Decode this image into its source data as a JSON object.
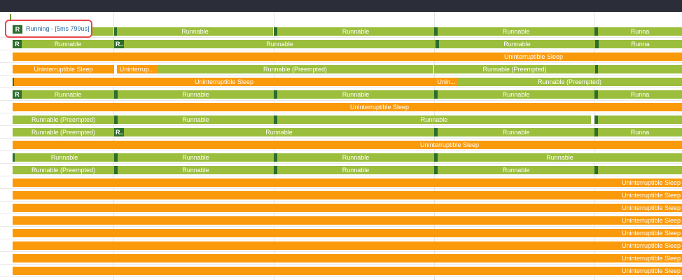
{
  "header": {
    "title": ""
  },
  "highlight": {
    "badge": "R",
    "text": "Running - [5ms 799us]"
  },
  "colors": {
    "runnable": "#9bbe3c",
    "sleep": "#fa9a0b",
    "running": "#2d6e2b",
    "highlight_border": "#e8464a",
    "topbar": "#2b2e38"
  },
  "tracks": [
    {
      "slices": [
        {
          "state": "runnable",
          "label": "Runnable"
        },
        {
          "state": "running",
          "label": ""
        },
        {
          "state": "runnable",
          "label": "Runnable"
        },
        {
          "state": "running",
          "label": ""
        },
        {
          "state": "runnable",
          "label": "Runnable"
        },
        {
          "state": "running",
          "label": ""
        },
        {
          "state": "runnable",
          "label": "Runnable"
        },
        {
          "state": "running",
          "label": ""
        },
        {
          "state": "runnable",
          "label": "Runna"
        }
      ]
    },
    {
      "slices": [
        {
          "state": "running",
          "label": "R"
        },
        {
          "state": "runnable",
          "label": "Runnable"
        },
        {
          "state": "running",
          "label": "R..."
        },
        {
          "state": "runnable",
          "label": "Runnable"
        },
        {
          "state": "running",
          "label": ""
        },
        {
          "state": "runnable",
          "label": "Runnable"
        },
        {
          "state": "running",
          "label": ""
        },
        {
          "state": "runnable",
          "label": "Runna"
        }
      ]
    },
    {
      "slices": [
        {
          "state": "sleep",
          "label": "Uninterruptible Sleep"
        }
      ]
    },
    {
      "slices": [
        {
          "state": "sleep",
          "label": "Uninterruptible Sleep"
        },
        {
          "state": "sleep",
          "label": "Uninterrup..."
        },
        {
          "state": "runnable",
          "label": "Runnable (Preempted)"
        },
        {
          "state": "runnable",
          "label": "Runnable (Preempted)"
        },
        {
          "state": "running",
          "label": ""
        },
        {
          "state": "runnable",
          "label": ""
        }
      ]
    },
    {
      "slices": [
        {
          "state": "running",
          "label": ""
        },
        {
          "state": "sleep",
          "label": "Uninterruptible Sleep"
        },
        {
          "state": "sleep",
          "label": "Unin..."
        },
        {
          "state": "runnable",
          "label": "Runnable (Preempted)"
        }
      ]
    },
    {
      "slices": [
        {
          "state": "running",
          "label": "R"
        },
        {
          "state": "runnable",
          "label": "Runnable"
        },
        {
          "state": "running",
          "label": ""
        },
        {
          "state": "runnable",
          "label": "Runnable"
        },
        {
          "state": "running",
          "label": ""
        },
        {
          "state": "runnable",
          "label": "Runnable"
        },
        {
          "state": "running",
          "label": ""
        },
        {
          "state": "runnable",
          "label": "Runnable"
        },
        {
          "state": "running",
          "label": ""
        },
        {
          "state": "runnable",
          "label": "Runna"
        }
      ]
    },
    {
      "slices": [
        {
          "state": "sleep",
          "label": "Uninterruptible Sleep"
        }
      ]
    },
    {
      "slices": [
        {
          "state": "runnable",
          "label": "Runnable (Preempted)"
        },
        {
          "state": "running",
          "label": ""
        },
        {
          "state": "runnable",
          "label": "Runnable"
        },
        {
          "state": "running",
          "label": ""
        },
        {
          "state": "runnable",
          "label": "Runnable"
        },
        {
          "state": "running",
          "label": ""
        },
        {
          "state": "runnable",
          "label": ""
        }
      ]
    },
    {
      "slices": [
        {
          "state": "runnable",
          "label": "Runnable (Preempted)"
        },
        {
          "state": "running",
          "label": "R..."
        },
        {
          "state": "runnable",
          "label": "Runnable"
        },
        {
          "state": "running",
          "label": ""
        },
        {
          "state": "runnable",
          "label": "Runnable"
        },
        {
          "state": "running",
          "label": ""
        },
        {
          "state": "runnable",
          "label": "Runna"
        }
      ]
    },
    {
      "slices": [
        {
          "state": "sleep",
          "label": "Uninterruptible Sleep"
        }
      ]
    },
    {
      "slices": [
        {
          "state": "running",
          "label": ""
        },
        {
          "state": "runnable",
          "label": "Runnable"
        },
        {
          "state": "running",
          "label": ""
        },
        {
          "state": "runnable",
          "label": "Runnable"
        },
        {
          "state": "running",
          "label": ""
        },
        {
          "state": "runnable",
          "label": "Runnable"
        },
        {
          "state": "running",
          "label": ""
        },
        {
          "state": "runnable",
          "label": "Runnable"
        }
      ]
    },
    {
      "slices": [
        {
          "state": "runnable",
          "label": "Runnable (Preempted)"
        },
        {
          "state": "running",
          "label": ""
        },
        {
          "state": "runnable",
          "label": "Runnable"
        },
        {
          "state": "running",
          "label": ""
        },
        {
          "state": "runnable",
          "label": "Runnable"
        },
        {
          "state": "running",
          "label": ""
        },
        {
          "state": "runnable",
          "label": "Runnable"
        },
        {
          "state": "running",
          "label": ""
        },
        {
          "state": "runnable",
          "label": ""
        }
      ]
    },
    {
      "slices": [
        {
          "state": "sleep",
          "label": "Uninterruptible Sleep"
        }
      ]
    },
    {
      "slices": [
        {
          "state": "sleep",
          "label": "Uninterruptible Sleep"
        }
      ]
    },
    {
      "slices": [
        {
          "state": "sleep",
          "label": "Uninterruptible Sleep"
        }
      ]
    },
    {
      "slices": [
        {
          "state": "sleep",
          "label": "Uninterruptible Sleep"
        }
      ]
    },
    {
      "slices": [
        {
          "state": "sleep",
          "label": "Uninterruptible Sleep"
        }
      ]
    },
    {
      "slices": [
        {
          "state": "sleep",
          "label": "Uninterruptible Sleep"
        }
      ]
    },
    {
      "slices": [
        {
          "state": "sleep",
          "label": "Uninterruptible Sleep"
        }
      ]
    },
    {
      "slices": [
        {
          "state": "sleep",
          "label": "Uninterruptible Sleep"
        }
      ]
    }
  ]
}
